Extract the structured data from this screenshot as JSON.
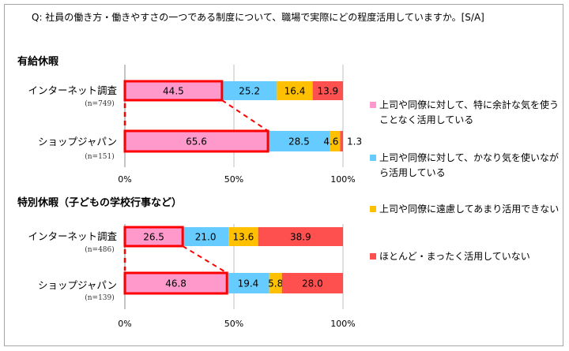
{
  "title": "Q: 社員の働き方・働きやすさの一つである制度について、職場で実際にどの程度活用していますか。[S/A]",
  "colors": {
    "series": [
      "#FF99CC",
      "#66CCFF",
      "#FFC000",
      "#FF5050"
    ],
    "highlight": "#FF0000"
  },
  "legend": [
    "上司や同僚に対して、特に余計な気を使うことなく活用している",
    "上司や同僚に対して、かなり気を使いながら活用している",
    "上司や同僚に遠慮してあまり活用できない",
    "ほとんど・まったく活用していない"
  ],
  "chart_data": [
    {
      "type": "bar",
      "orientation": "horizontal-stacked-100",
      "title": "有給休暇",
      "categories": [
        {
          "label": "インターネット調査",
          "n": "(n=749)"
        },
        {
          "label": "ショップジャパン",
          "n": "(n=151)"
        }
      ],
      "series": [
        {
          "name": "上司や同僚に対して、特に余計な気を使うことなく活用している",
          "values": [
            44.5,
            65.6
          ],
          "labels": [
            "44.5",
            "65.6"
          ]
        },
        {
          "name": "上司や同僚に対して、かなり気を使いながら活用している",
          "values": [
            25.2,
            28.5
          ],
          "labels": [
            "25.2",
            "28.5"
          ]
        },
        {
          "name": "上司や同僚に遠慮してあまり活用できない",
          "values": [
            16.4,
            4.6
          ],
          "labels": [
            "16.4",
            "4.6"
          ]
        },
        {
          "name": "ほとんど・まったく活用していない",
          "values": [
            13.9,
            1.3
          ],
          "labels": [
            "13.9",
            "1.3"
          ]
        }
      ],
      "xlim": [
        0,
        100
      ],
      "xticks": [
        "0%",
        "50%",
        "100%"
      ],
      "grid": true,
      "legend": "right"
    },
    {
      "type": "bar",
      "orientation": "horizontal-stacked-100",
      "title": "特別休暇（子どもの学校行事など）",
      "categories": [
        {
          "label": "インターネット調査",
          "n": "(n=486)"
        },
        {
          "label": "ショップジャパン",
          "n": "(n=139)"
        }
      ],
      "series": [
        {
          "name": "上司や同僚に対して、特に余計な気を使うことなく活用している",
          "values": [
            26.5,
            46.8
          ],
          "labels": [
            "26.5",
            "46.8"
          ]
        },
        {
          "name": "上司や同僚に対して、かなり気を使いながら活用している",
          "values": [
            21.0,
            19.4
          ],
          "labels": [
            "21.0",
            "19.4"
          ]
        },
        {
          "name": "上司や同僚に遠慮してあまり活用できない",
          "values": [
            13.6,
            5.8
          ],
          "labels": [
            "13.6",
            "5.8"
          ]
        },
        {
          "name": "ほとんど・まったく活用していない",
          "values": [
            38.9,
            28.0
          ],
          "labels": [
            "38.9",
            "28.0"
          ]
        }
      ],
      "xlim": [
        0,
        100
      ],
      "xticks": [
        "0%",
        "50%",
        "100%"
      ],
      "grid": true,
      "legend": "right"
    }
  ]
}
